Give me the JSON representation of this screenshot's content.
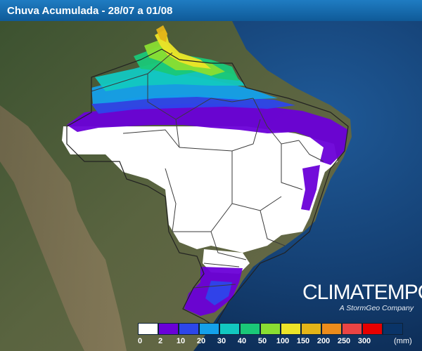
{
  "title": "Chuva Acumulada - 28/07 a 01/08",
  "brand": {
    "name": "CLIMATEMPO",
    "tagline": "A StormGeo Company"
  },
  "legend": {
    "unit": "(mm)",
    "labels": [
      "0",
      "2",
      "10",
      "20",
      "30",
      "40",
      "50",
      "100",
      "150",
      "200",
      "250",
      "300"
    ],
    "colors": [
      "#ffffff",
      "#6a00d8",
      "#2d46ea",
      "#14a0ea",
      "#12c8c0",
      "#1ac878",
      "#8ade32",
      "#ece428",
      "#e4b418",
      "#ec8c1c",
      "#ea4444",
      "#e60000",
      "#0a3468"
    ]
  },
  "colors": {
    "ocean": "#14427a",
    "land": "#4a5b3a",
    "no_rain": "#ffffff",
    "borders": "#3a3a3a"
  }
}
